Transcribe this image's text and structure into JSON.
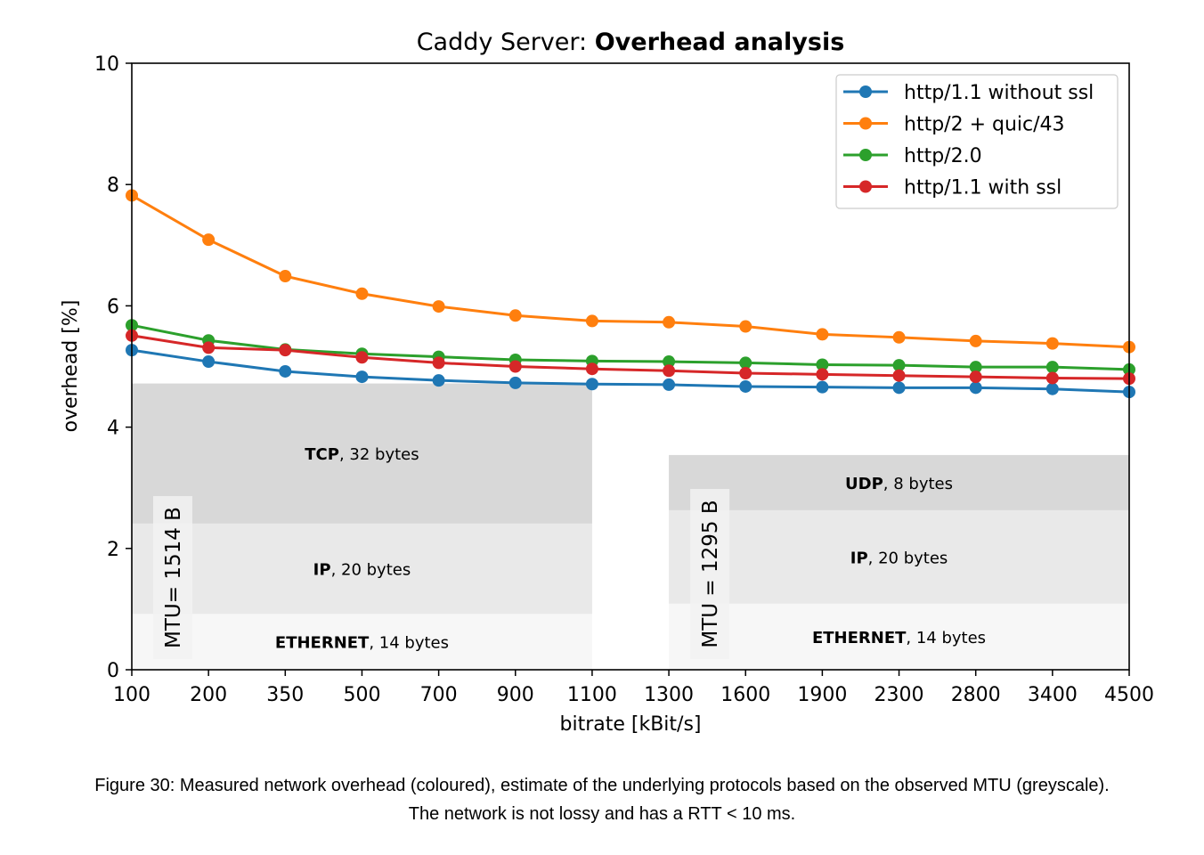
{
  "chart_data": {
    "type": "line",
    "title": "Caddy Server:",
    "title_bold": "Overhead analysis",
    "xlabel": "bitrate [kBit/s]",
    "ylabel": "overhead [%]",
    "ylim": [
      0,
      10
    ],
    "yticks": [
      "0",
      "2",
      "4",
      "6",
      "8",
      "10"
    ],
    "categories": [
      "100",
      "200",
      "350",
      "500",
      "700",
      "900",
      "1100",
      "1300",
      "1600",
      "1900",
      "2300",
      "2800",
      "3400",
      "4500"
    ],
    "legend_position": "top-right",
    "series": [
      {
        "name": "http/1.1 without ssl",
        "color": "#1f77b4",
        "values": [
          5.27,
          5.08,
          4.92,
          4.83,
          4.77,
          4.73,
          4.71,
          4.7,
          4.67,
          4.66,
          4.65,
          4.65,
          4.63,
          4.58
        ]
      },
      {
        "name": "http/2 + quic/43",
        "color": "#ff7f0e",
        "values": [
          7.82,
          7.09,
          6.49,
          6.2,
          5.99,
          5.84,
          5.75,
          5.73,
          5.66,
          5.53,
          5.48,
          5.42,
          5.38,
          5.32
        ]
      },
      {
        "name": "http/2.0",
        "color": "#2ca02c",
        "values": [
          5.68,
          5.43,
          5.28,
          5.21,
          5.16,
          5.11,
          5.09,
          5.08,
          5.06,
          5.03,
          5.02,
          4.99,
          4.99,
          4.95
        ]
      },
      {
        "name": "http/1.1 with ssl",
        "color": "#d62728",
        "values": [
          5.51,
          5.31,
          5.27,
          5.15,
          5.06,
          5.0,
          4.96,
          4.93,
          4.89,
          4.87,
          4.85,
          4.83,
          4.81,
          4.8
        ]
      }
    ],
    "regions": [
      {
        "label": "MTU= 1514 B",
        "x_range": [
          "100",
          "1100"
        ],
        "layers": [
          {
            "bold": "ETHERNET",
            "text": ", 14 bytes",
            "from": 0,
            "to": 0.92,
            "color": "#f7f7f7"
          },
          {
            "bold": "IP",
            "text": ", 20 bytes",
            "from": 0.92,
            "to": 2.41,
            "color": "#e9e9e9"
          },
          {
            "bold": "TCP",
            "text": ", 32 bytes",
            "from": 2.41,
            "to": 4.72,
            "color": "#d8d8d8"
          }
        ]
      },
      {
        "label": "MTU = 1295 B",
        "x_range": [
          "1300",
          "4500"
        ],
        "layers": [
          {
            "bold": "ETHERNET",
            "text": ", 14 bytes",
            "from": 0,
            "to": 1.09,
            "color": "#f7f7f7"
          },
          {
            "bold": "IP",
            "text": ", 20 bytes",
            "from": 1.09,
            "to": 2.63,
            "color": "#e9e9e9"
          },
          {
            "bold": "UDP",
            "text": ", 8 bytes",
            "from": 2.63,
            "to": 3.54,
            "color": "#d8d8d8"
          }
        ]
      }
    ]
  },
  "caption": {
    "line1": "Figure 30: Measured network overhead (coloured), estimate of the underlying protocols based on the observed MTU (greyscale).",
    "line2": "The network is not lossy and has a RTT < 10 ms."
  }
}
